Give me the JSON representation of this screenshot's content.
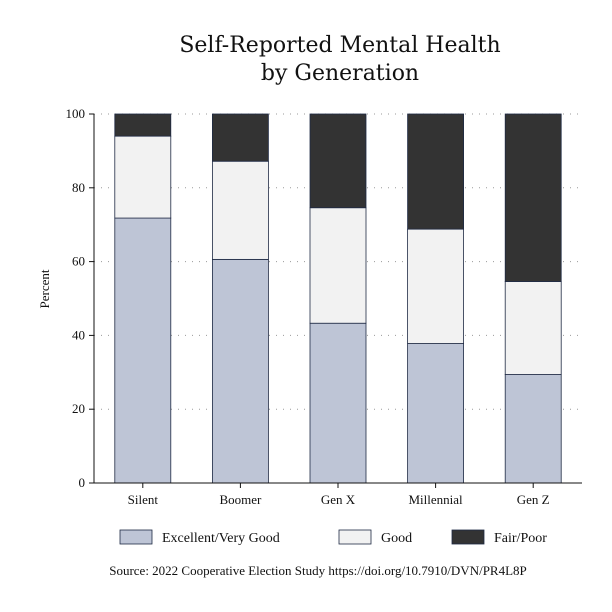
{
  "chart_data": {
    "type": "bar",
    "stacked": true,
    "title_lines": [
      "Self-Reported Mental Health",
      "by Generation"
    ],
    "ylabel": "Percent",
    "xlabel": "",
    "ylim": [
      0,
      100
    ],
    "yticks": [
      0,
      20,
      40,
      60,
      80,
      100
    ],
    "grid": "dotted horizontal",
    "categories": [
      "Silent",
      "Boomer",
      "Gen X",
      "Millennial",
      "Gen Z"
    ],
    "series": [
      {
        "name": "Excellent/Very Good",
        "color": "#bec5d6",
        "values": [
          71.8,
          60.6,
          43.3,
          37.8,
          29.4
        ]
      },
      {
        "name": "Good",
        "color": "#f2f2f2",
        "values": [
          22.2,
          26.6,
          31.3,
          31.0,
          25.2
        ]
      },
      {
        "name": "Fair/Poor",
        "color": "#333333",
        "values": [
          6.0,
          12.8,
          25.4,
          31.2,
          45.4
        ]
      }
    ],
    "legend_position": "bottom",
    "source": "Source: 2022 Cooperative Election Study https://doi.org/10.7910/DVN/PR4L8P"
  }
}
